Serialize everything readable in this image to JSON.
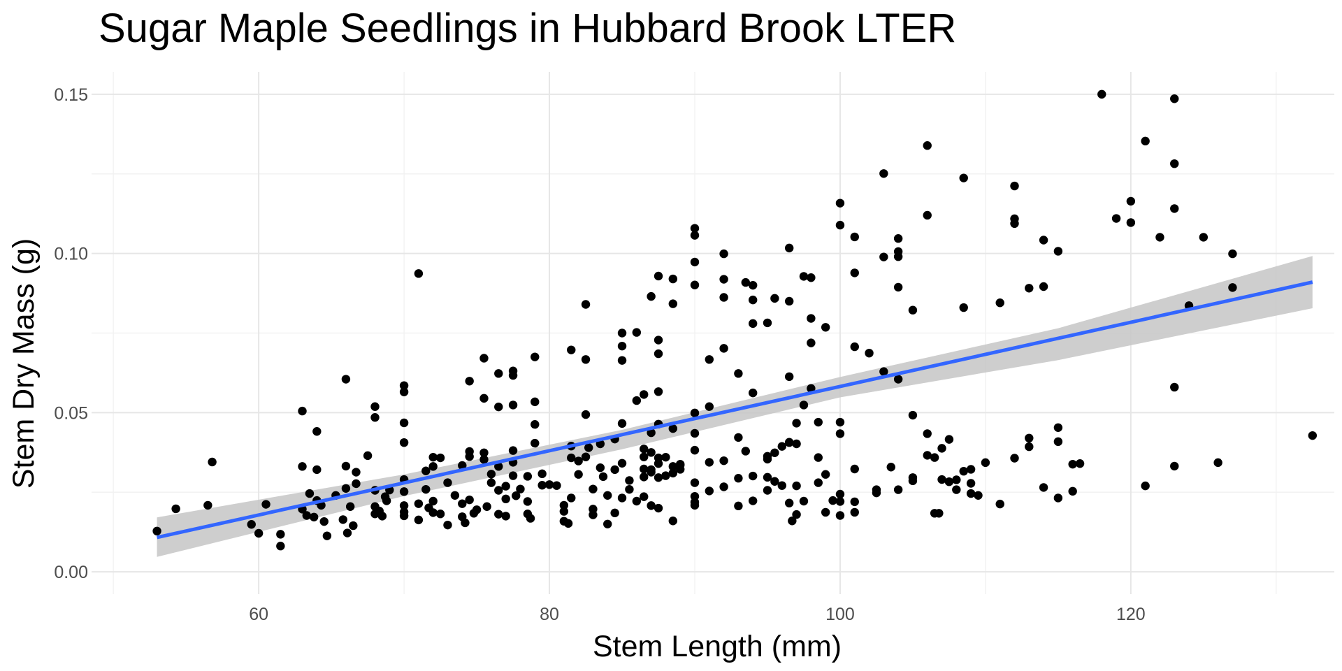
{
  "chart_data": {
    "type": "scatter",
    "title": "Sugar Maple Seedlings in Hubbard Brook LTER",
    "xlabel": "Stem Length (mm)",
    "ylabel": "Stem Dry Mass (g)",
    "xlim": [
      48.5,
      134.0
    ],
    "ylim": [
      -0.007,
      0.157
    ],
    "x_ticks": [
      60,
      80,
      100,
      120
    ],
    "x_tick_labels": [
      "60",
      "80",
      "100",
      "120"
    ],
    "y_ticks": [
      0.0,
      0.05,
      0.1,
      0.15
    ],
    "y_tick_labels": [
      "0.00",
      "0.05",
      "0.10",
      "0.15"
    ],
    "grid": true,
    "legend": "none",
    "colors": {
      "points": "#000000",
      "trend_line": "#3366ff",
      "confidence_band": "#c6c6c6"
    },
    "trend_line": {
      "method": "lm",
      "x": [
        53,
        132.5
      ],
      "y": [
        0.0108,
        0.091
      ]
    },
    "confidence_band": {
      "x": [
        53,
        70,
        85,
        100,
        115,
        132.5
      ],
      "lower": [
        0.0047,
        0.0238,
        0.0385,
        0.0548,
        0.0665,
        0.0828
      ],
      "upper": [
        0.0171,
        0.0306,
        0.0446,
        0.0612,
        0.0765,
        0.0992
      ]
    },
    "points": [
      [
        53,
        0.0128
      ],
      [
        54.3,
        0.0198
      ],
      [
        56.5,
        0.0209
      ],
      [
        56.8,
        0.0345
      ],
      [
        59.5,
        0.0149
      ],
      [
        60,
        0.0121
      ],
      [
        60.5,
        0.0212
      ],
      [
        61.5,
        0.0118
      ],
      [
        61.5,
        0.0081
      ],
      [
        63,
        0.0505
      ],
      [
        63,
        0.0331
      ],
      [
        63,
        0.0197
      ],
      [
        63.3,
        0.0177
      ],
      [
        63.5,
        0.0246
      ],
      [
        63.8,
        0.0172
      ],
      [
        64,
        0.0441
      ],
      [
        64,
        0.0321
      ],
      [
        64,
        0.0224
      ],
      [
        64.3,
        0.0209
      ],
      [
        64.5,
        0.0158
      ],
      [
        64.7,
        0.0113
      ],
      [
        65.3,
        0.024
      ],
      [
        65.8,
        0.0164
      ],
      [
        66,
        0.0605
      ],
      [
        66,
        0.0332
      ],
      [
        66,
        0.0262
      ],
      [
        66.1,
        0.0122
      ],
      [
        66.3,
        0.0205
      ],
      [
        66.5,
        0.0145
      ],
      [
        66.7,
        0.0313
      ],
      [
        66.7,
        0.0277
      ],
      [
        67.5,
        0.0365
      ],
      [
        68,
        0.0519
      ],
      [
        68,
        0.0485
      ],
      [
        68,
        0.0256
      ],
      [
        68,
        0.0205
      ],
      [
        68,
        0.0182
      ],
      [
        68.3,
        0.0191
      ],
      [
        68.5,
        0.0175
      ],
      [
        68.7,
        0.0236
      ],
      [
        68.8,
        0.0223
      ],
      [
        69,
        0.0257
      ],
      [
        70,
        0.0585
      ],
      [
        70,
        0.0565
      ],
      [
        70,
        0.0468
      ],
      [
        70,
        0.0406
      ],
      [
        70,
        0.029
      ],
      [
        70,
        0.0252
      ],
      [
        70,
        0.0208
      ],
      [
        70,
        0.0188
      ],
      [
        70,
        0.0176
      ],
      [
        71,
        0.0937
      ],
      [
        71,
        0.0163
      ],
      [
        71,
        0.0214
      ],
      [
        71.5,
        0.0317
      ],
      [
        71.5,
        0.0259
      ],
      [
        71.7,
        0.0201
      ],
      [
        72,
        0.036
      ],
      [
        72,
        0.0331
      ],
      [
        72,
        0.0222
      ],
      [
        72,
        0.0186
      ],
      [
        72.5,
        0.0358
      ],
      [
        72.5,
        0.0182
      ],
      [
        73,
        0.028
      ],
      [
        73,
        0.0147
      ],
      [
        73.5,
        0.024
      ],
      [
        74,
        0.0334
      ],
      [
        74,
        0.0214
      ],
      [
        74,
        0.0173
      ],
      [
        74.2,
        0.0154
      ],
      [
        74.5,
        0.0599
      ],
      [
        74.5,
        0.0378
      ],
      [
        74.5,
        0.0362
      ],
      [
        74.5,
        0.0226
      ],
      [
        74.8,
        0.0184
      ],
      [
        75,
        0.0195
      ],
      [
        75.5,
        0.0671
      ],
      [
        75.5,
        0.0545
      ],
      [
        75.5,
        0.0374
      ],
      [
        75.5,
        0.0353
      ],
      [
        75.7,
        0.0205
      ],
      [
        76,
        0.0307
      ],
      [
        76,
        0.028
      ],
      [
        76.5,
        0.0623
      ],
      [
        76.5,
        0.0518
      ],
      [
        76.5,
        0.0331
      ],
      [
        76.5,
        0.0256
      ],
      [
        76.5,
        0.0181
      ],
      [
        77,
        0.0269
      ],
      [
        77,
        0.0229
      ],
      [
        77,
        0.0175
      ],
      [
        77.5,
        0.0631
      ],
      [
        77.5,
        0.0617
      ],
      [
        77.5,
        0.0524
      ],
      [
        77.5,
        0.0381
      ],
      [
        77.5,
        0.0344
      ],
      [
        77.5,
        0.0302
      ],
      [
        77.7,
        0.0239
      ],
      [
        78,
        0.026
      ],
      [
        78.5,
        0.03
      ],
      [
        78.5,
        0.0221
      ],
      [
        78.5,
        0.0182
      ],
      [
        78.7,
        0.0168
      ],
      [
        79,
        0.0675
      ],
      [
        79,
        0.0534
      ],
      [
        79,
        0.0463
      ],
      [
        79,
        0.0404
      ],
      [
        79.5,
        0.0308
      ],
      [
        79.5,
        0.0272
      ],
      [
        80,
        0.0274
      ],
      [
        80.5,
        0.0271
      ],
      [
        81,
        0.0209
      ],
      [
        81,
        0.019
      ],
      [
        81,
        0.0159
      ],
      [
        81.3,
        0.0152
      ],
      [
        81.5,
        0.0697
      ],
      [
        81.5,
        0.0395
      ],
      [
        81.5,
        0.0358
      ],
      [
        81.5,
        0.0232
      ],
      [
        82,
        0.0306
      ],
      [
        82,
        0.0348
      ],
      [
        82.5,
        0.0361
      ],
      [
        82.5,
        0.084
      ],
      [
        82.5,
        0.0667
      ],
      [
        82.5,
        0.0494
      ],
      [
        82.7,
        0.039
      ],
      [
        83,
        0.026
      ],
      [
        83,
        0.0197
      ],
      [
        83,
        0.0179
      ],
      [
        83.5,
        0.0402
      ],
      [
        83.5,
        0.0327
      ],
      [
        83.7,
        0.0299
      ],
      [
        84,
        0.024
      ],
      [
        84,
        0.015
      ],
      [
        84.5,
        0.0417
      ],
      [
        84.5,
        0.0321
      ],
      [
        84.5,
        0.0185
      ],
      [
        85,
        0.075
      ],
      [
        85,
        0.0709
      ],
      [
        85,
        0.0664
      ],
      [
        85,
        0.0466
      ],
      [
        85,
        0.0341
      ],
      [
        85,
        0.0232
      ],
      [
        85.5,
        0.0287
      ],
      [
        85.5,
        0.0259
      ],
      [
        86,
        0.0222
      ],
      [
        86,
        0.0752
      ],
      [
        86,
        0.0538
      ],
      [
        86.5,
        0.0557
      ],
      [
        86.5,
        0.0386
      ],
      [
        86.5,
        0.0361
      ],
      [
        86.5,
        0.0323
      ],
      [
        86.5,
        0.0298
      ],
      [
        86.5,
        0.0236
      ],
      [
        87,
        0.0865
      ],
      [
        87,
        0.0437
      ],
      [
        87,
        0.0375
      ],
      [
        87,
        0.0321
      ],
      [
        87,
        0.0313
      ],
      [
        87,
        0.0208
      ],
      [
        87.5,
        0.0929
      ],
      [
        87.5,
        0.0728
      ],
      [
        87.5,
        0.0685
      ],
      [
        87.5,
        0.0566
      ],
      [
        87.5,
        0.0464
      ],
      [
        87.5,
        0.0358
      ],
      [
        87.5,
        0.034
      ],
      [
        87.5,
        0.0296
      ],
      [
        87.5,
        0.02
      ],
      [
        88,
        0.036
      ],
      [
        88,
        0.0302
      ],
      [
        88.5,
        0.092
      ],
      [
        88.5,
        0.0842
      ],
      [
        88.5,
        0.045
      ],
      [
        88.5,
        0.0331
      ],
      [
        88.5,
        0.031
      ],
      [
        88.5,
        0.016
      ],
      [
        89,
        0.0322
      ],
      [
        89,
        0.0338
      ],
      [
        89,
        0.0335
      ],
      [
        90,
        0.1079
      ],
      [
        90,
        0.1057
      ],
      [
        90,
        0.0973
      ],
      [
        90,
        0.0901
      ],
      [
        90,
        0.0499
      ],
      [
        90,
        0.0435
      ],
      [
        90,
        0.0382
      ],
      [
        90,
        0.028
      ],
      [
        90,
        0.0237
      ],
      [
        90,
        0.0209
      ],
      [
        90,
        0.0219
      ],
      [
        91,
        0.0667
      ],
      [
        91,
        0.0519
      ],
      [
        91,
        0.0344
      ],
      [
        91,
        0.0254
      ],
      [
        92,
        0.0999
      ],
      [
        92,
        0.0919
      ],
      [
        92,
        0.0862
      ],
      [
        92,
        0.0702
      ],
      [
        92,
        0.0349
      ],
      [
        92,
        0.0267
      ],
      [
        93,
        0.0623
      ],
      [
        93,
        0.0422
      ],
      [
        93,
        0.0294
      ],
      [
        93,
        0.0207
      ],
      [
        93.5,
        0.0909
      ],
      [
        93.5,
        0.0379
      ],
      [
        94,
        0.09
      ],
      [
        94,
        0.0854
      ],
      [
        94,
        0.078
      ],
      [
        94,
        0.0562
      ],
      [
        94,
        0.0301
      ],
      [
        94,
        0.0223
      ],
      [
        95,
        0.0363
      ],
      [
        95,
        0.0354
      ],
      [
        95,
        0.0297
      ],
      [
        95,
        0.0256
      ],
      [
        95,
        0.0782
      ],
      [
        95.5,
        0.0859
      ],
      [
        95.5,
        0.0374
      ],
      [
        95.5,
        0.0284
      ],
      [
        96,
        0.0394
      ],
      [
        96,
        0.0271
      ],
      [
        96.5,
        0.1017
      ],
      [
        96.5,
        0.085
      ],
      [
        96.5,
        0.0613
      ],
      [
        96.5,
        0.0407
      ],
      [
        96.5,
        0.0406
      ],
      [
        96.5,
        0.0216
      ],
      [
        96.7,
        0.016
      ],
      [
        97,
        0.018
      ],
      [
        97,
        0.0402
      ],
      [
        97,
        0.0467
      ],
      [
        97,
        0.027
      ],
      [
        97.5,
        0.0928
      ],
      [
        97.5,
        0.0524
      ],
      [
        97.5,
        0.0222
      ],
      [
        98,
        0.0924
      ],
      [
        98,
        0.0796
      ],
      [
        98,
        0.0719
      ],
      [
        98,
        0.0576
      ],
      [
        98.5,
        0.028
      ],
      [
        98.5,
        0.0359
      ],
      [
        98.5,
        0.047
      ],
      [
        99,
        0.0768
      ],
      [
        99,
        0.0306
      ],
      [
        99,
        0.0187
      ],
      [
        99.5,
        0.0224
      ],
      [
        100,
        0.1158
      ],
      [
        100,
        0.1089
      ],
      [
        100,
        0.047
      ],
      [
        100,
        0.0434
      ],
      [
        100,
        0.0244
      ],
      [
        100,
        0.0221
      ],
      [
        100,
        0.0177
      ],
      [
        101,
        0.1052
      ],
      [
        101,
        0.0939
      ],
      [
        101,
        0.0707
      ],
      [
        101,
        0.0323
      ],
      [
        101,
        0.022
      ],
      [
        101,
        0.0187
      ],
      [
        102,
        0.0687
      ],
      [
        102.5,
        0.0248
      ],
      [
        102.5,
        0.0258
      ],
      [
        103,
        0.0629
      ],
      [
        103,
        0.0989
      ],
      [
        103,
        0.1251
      ],
      [
        103.5,
        0.0329
      ],
      [
        104,
        0.0258
      ],
      [
        104,
        0.0605
      ],
      [
        104,
        0.0894
      ],
      [
        104,
        0.099
      ],
      [
        104,
        0.1006
      ],
      [
        104,
        0.1047
      ],
      [
        105,
        0.0822
      ],
      [
        105,
        0.0296
      ],
      [
        105,
        0.0492
      ],
      [
        105,
        0.0286
      ],
      [
        106,
        0.1339
      ],
      [
        106,
        0.112
      ],
      [
        106,
        0.0434
      ],
      [
        106,
        0.0366
      ],
      [
        106.5,
        0.0359
      ],
      [
        106.5,
        0.0184
      ],
      [
        106.8,
        0.0184
      ],
      [
        107,
        0.0388
      ],
      [
        107,
        0.029
      ],
      [
        107.5,
        0.0416
      ],
      [
        107.5,
        0.0283
      ],
      [
        108,
        0.0289
      ],
      [
        108,
        0.0258
      ],
      [
        108.5,
        0.1237
      ],
      [
        108.5,
        0.083
      ],
      [
        108.5,
        0.0316
      ],
      [
        109,
        0.0322
      ],
      [
        109,
        0.0278
      ],
      [
        109,
        0.0246
      ],
      [
        109.5,
        0.024
      ],
      [
        110,
        0.0343
      ],
      [
        111,
        0.0845
      ],
      [
        111,
        0.0213
      ],
      [
        112,
        0.1212
      ],
      [
        112,
        0.1109
      ],
      [
        112,
        0.1094
      ],
      [
        112,
        0.0357
      ],
      [
        113,
        0.0891
      ],
      [
        113,
        0.042
      ],
      [
        113,
        0.0393
      ],
      [
        114,
        0.0896
      ],
      [
        114,
        0.1042
      ],
      [
        114,
        0.0265
      ],
      [
        115,
        0.0409
      ],
      [
        115,
        0.1007
      ],
      [
        115,
        0.0453
      ],
      [
        115,
        0.0232
      ],
      [
        116,
        0.0253
      ],
      [
        116,
        0.0338
      ],
      [
        116.5,
        0.034
      ],
      [
        118,
        0.15
      ],
      [
        119,
        0.111
      ],
      [
        120,
        0.1164
      ],
      [
        120,
        0.1097
      ],
      [
        121,
        0.1353
      ],
      [
        121,
        0.027
      ],
      [
        122,
        0.1051
      ],
      [
        123,
        0.1282
      ],
      [
        123,
        0.1141
      ],
      [
        123,
        0.1486
      ],
      [
        123,
        0.058
      ],
      [
        123,
        0.0332
      ],
      [
        124,
        0.0836
      ],
      [
        125,
        0.1051
      ],
      [
        126,
        0.0343
      ],
      [
        127,
        0.0999
      ],
      [
        127,
        0.0893
      ],
      [
        132.5,
        0.0428
      ]
    ]
  }
}
